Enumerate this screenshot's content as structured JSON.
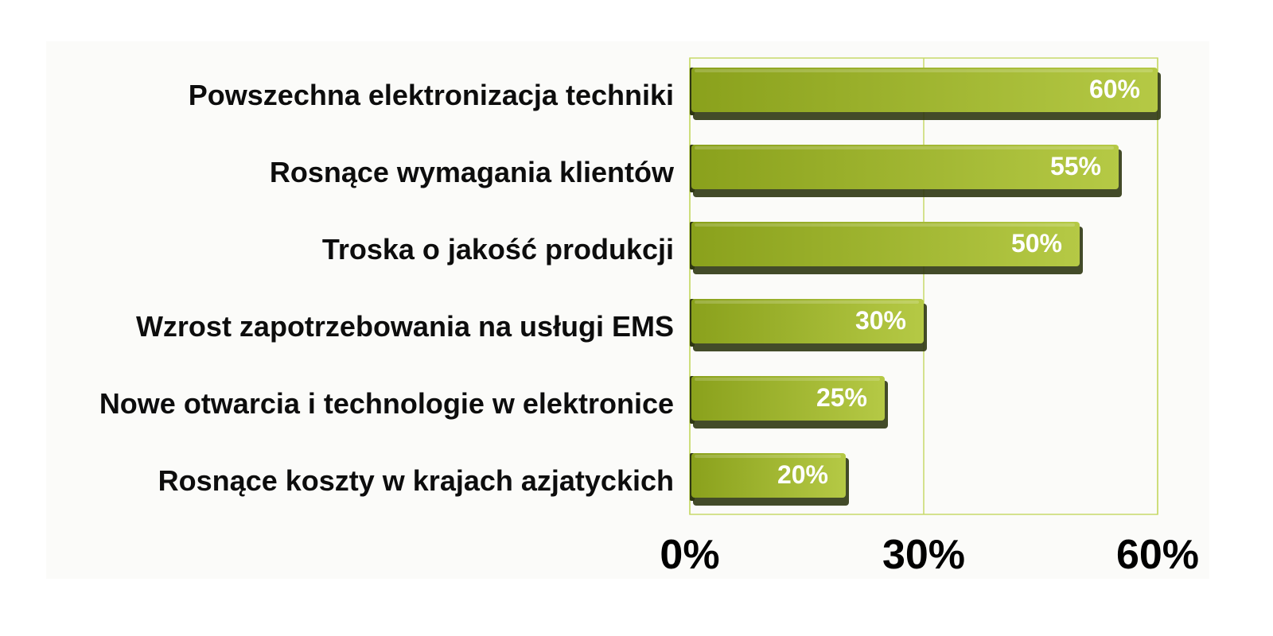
{
  "chart_data": {
    "type": "bar",
    "orientation": "horizontal",
    "title": "",
    "xlabel": "",
    "ylabel": "",
    "categories": [
      "Powszechna elektronizacja techniki",
      "Rosnące wymagania klientów",
      "Troska o jakość produkcji",
      "Wzrost zapotrzebowania na usługi EMS",
      "Nowe otwarcia i technologie w elektronice",
      "Rosnące koszty w krajach azjatyckich"
    ],
    "values": [
      60,
      55,
      50,
      30,
      25,
      20
    ],
    "value_labels": [
      "60%",
      "55%",
      "50%",
      "30%",
      "25%",
      "20%"
    ],
    "xlim": [
      0,
      60
    ],
    "x_ticks": [
      0,
      30,
      60
    ],
    "x_tick_labels": [
      "0%",
      "30%",
      "60%"
    ],
    "grid": true,
    "legend": "none",
    "colors": {
      "bar_light": "#b5c945",
      "bar_dark": "#8aa11c",
      "bar_shadow": "#2f3712",
      "grid": "#c8d96a"
    }
  }
}
